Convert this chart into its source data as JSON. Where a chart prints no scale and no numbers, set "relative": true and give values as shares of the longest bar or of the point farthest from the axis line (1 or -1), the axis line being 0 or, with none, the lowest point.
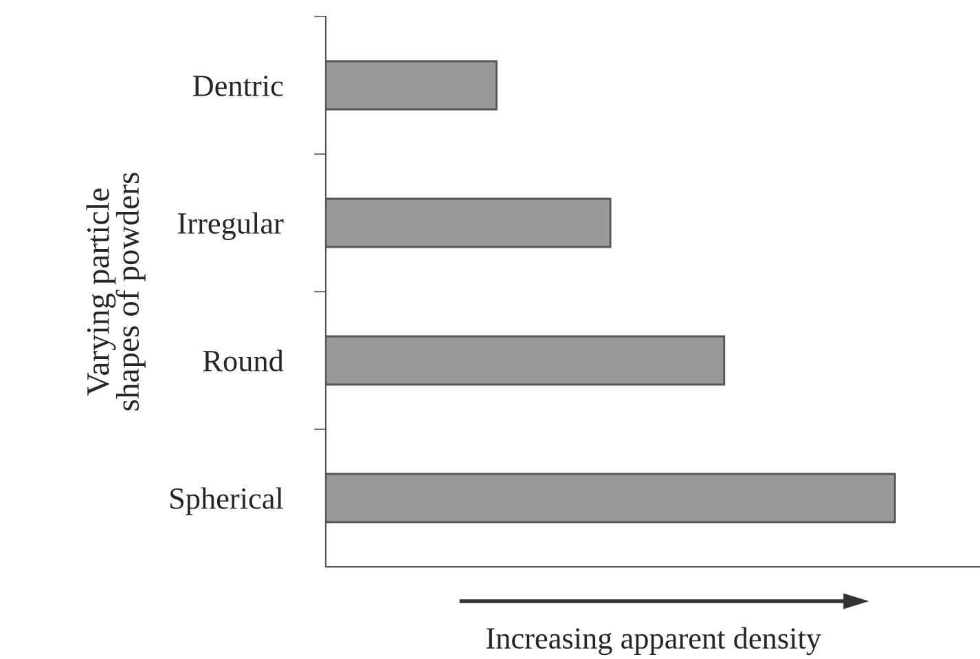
{
  "chart_data": {
    "type": "bar",
    "orientation": "horizontal",
    "relative": true,
    "categories": [
      "Dentric",
      "Irregular",
      "Round",
      "Spherical"
    ],
    "values": [
      0.3,
      0.5,
      0.7,
      1.0
    ],
    "color": "#999999",
    "xlabel": "Increasing apparent density",
    "ylabel": "Varying particle\nshapes of powders",
    "grid": false,
    "legend": false
  }
}
